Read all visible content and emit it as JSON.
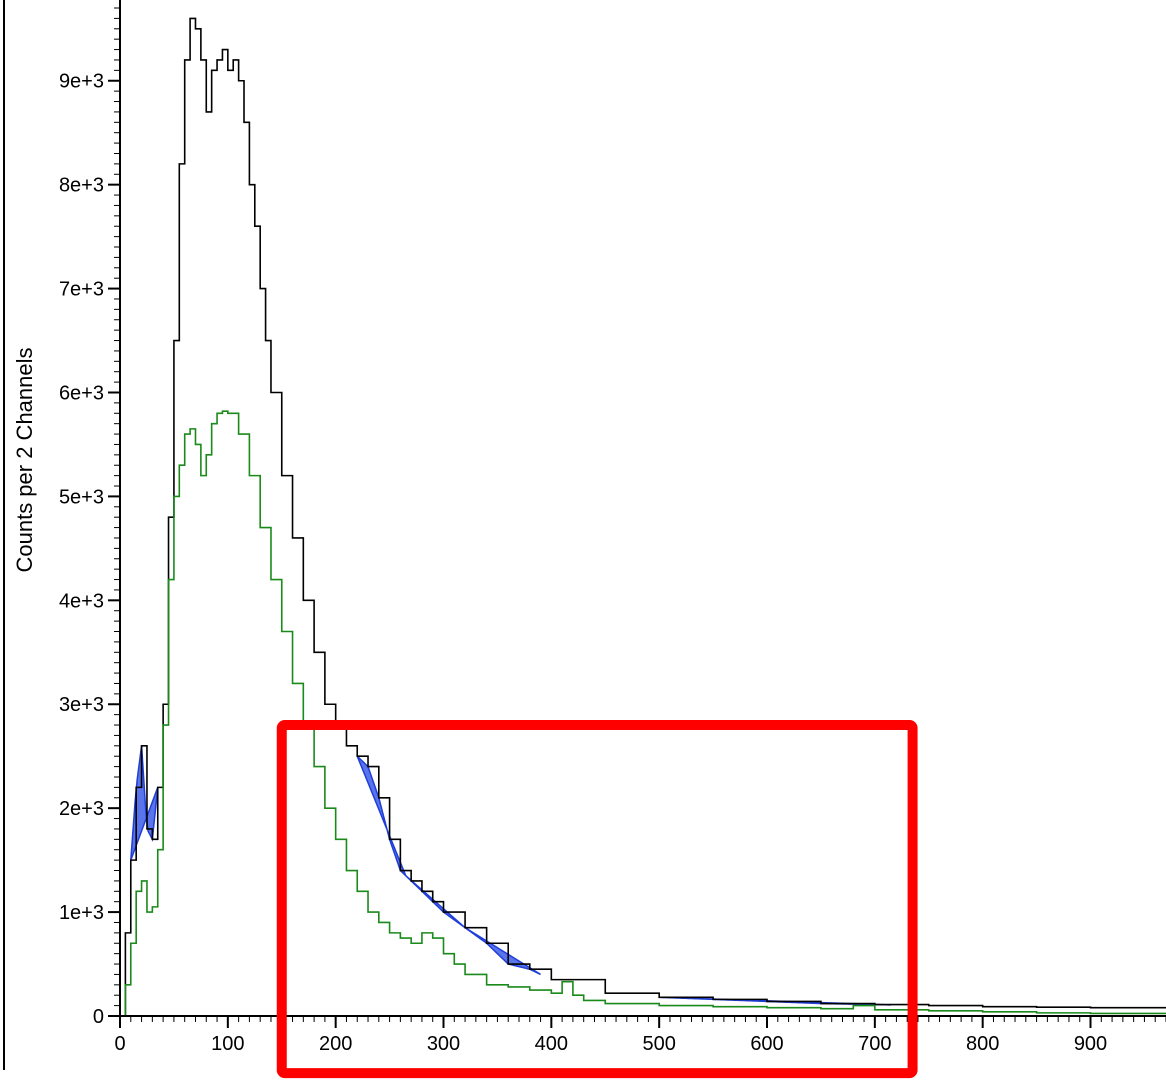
{
  "chart_data": {
    "type": "line",
    "title": "",
    "xlabel": "",
    "ylabel": "Counts per 2 Channels",
    "xlim": [
      0,
      970
    ],
    "ylim": [
      0,
      9700
    ],
    "x_ticks": [
      0,
      100,
      200,
      300,
      400,
      500,
      600,
      700,
      800,
      900
    ],
    "x_tick_labels": [
      "0",
      "100",
      "200",
      "300",
      "400",
      "500",
      "600",
      "700",
      "800",
      "900"
    ],
    "y_ticks": [
      0,
      1000,
      2000,
      3000,
      4000,
      5000,
      6000,
      7000,
      8000,
      9000
    ],
    "y_tick_labels": [
      "0",
      "1e+3",
      "2e+3",
      "3e+3",
      "4e+3",
      "5e+3",
      "6e+3",
      "7e+3",
      "8e+3",
      "9e+3"
    ],
    "series": [
      {
        "color": "#000000",
        "x": [
          0,
          5,
          10,
          15,
          20,
          25,
          30,
          35,
          40,
          45,
          50,
          55,
          60,
          65,
          70,
          75,
          80,
          85,
          90,
          95,
          100,
          105,
          110,
          115,
          120,
          125,
          130,
          135,
          140,
          150,
          160,
          170,
          180,
          190,
          200,
          210,
          220,
          230,
          240,
          250,
          260,
          270,
          280,
          290,
          300,
          320,
          340,
          360,
          380,
          400,
          450,
          500,
          550,
          600,
          650,
          700,
          750,
          800,
          850,
          900,
          970
        ],
        "values": [
          0,
          800,
          1500,
          2200,
          2600,
          1800,
          1700,
          2200,
          3000,
          4800,
          6500,
          8200,
          9200,
          9600,
          9500,
          9200,
          8700,
          9100,
          9200,
          9300,
          9100,
          9200,
          9000,
          8600,
          8000,
          7600,
          7000,
          6500,
          6000,
          5200,
          4600,
          4000,
          3500,
          3000,
          2800,
          2600,
          2500,
          2400,
          2100,
          1700,
          1400,
          1300,
          1200,
          1100,
          1000,
          850,
          700,
          500,
          450,
          350,
          220,
          180,
          160,
          140,
          120,
          110,
          100,
          90,
          85,
          80,
          75
        ]
      },
      {
        "color": "#1a8a1a",
        "x": [
          0,
          5,
          10,
          15,
          20,
          25,
          30,
          35,
          40,
          45,
          50,
          55,
          60,
          65,
          70,
          75,
          80,
          85,
          90,
          95,
          100,
          110,
          120,
          130,
          140,
          150,
          160,
          170,
          180,
          190,
          200,
          210,
          220,
          230,
          240,
          250,
          260,
          270,
          280,
          290,
          300,
          310,
          320,
          340,
          360,
          380,
          400,
          410,
          420,
          430,
          450,
          500,
          550,
          600,
          650,
          680,
          700,
          750,
          800,
          850,
          900,
          970
        ],
        "values": [
          0,
          300,
          700,
          1200,
          1300,
          1000,
          1050,
          1600,
          2800,
          4200,
          5000,
          5300,
          5600,
          5650,
          5500,
          5200,
          5400,
          5700,
          5800,
          5820,
          5800,
          5600,
          5200,
          4700,
          4200,
          3700,
          3200,
          2800,
          2400,
          2000,
          1700,
          1400,
          1200,
          1000,
          900,
          800,
          750,
          700,
          800,
          750,
          600,
          500,
          400,
          300,
          280,
          250,
          220,
          330,
          200,
          150,
          120,
          100,
          90,
          80,
          70,
          100,
          60,
          50,
          40,
          30,
          25,
          20
        ]
      }
    ],
    "highlight_regions": [
      {
        "x_from": 10,
        "x_to": 35,
        "color": "#3d5ce8"
      },
      {
        "x_from": 220,
        "x_to": 265,
        "color": "#3d5ce8"
      },
      {
        "x_from": 265,
        "x_to": 320,
        "color": "#3d5ce8"
      },
      {
        "x_from": 320,
        "x_to": 390,
        "color": "#3d5ce8"
      },
      {
        "x_from": 500,
        "x_to": 715,
        "color": "#3d5ce8"
      }
    ],
    "annotation_box": {
      "x_from": 150,
      "x_to": 735,
      "y_from": -550,
      "y_to": 2800,
      "color": "#ff0000"
    }
  }
}
